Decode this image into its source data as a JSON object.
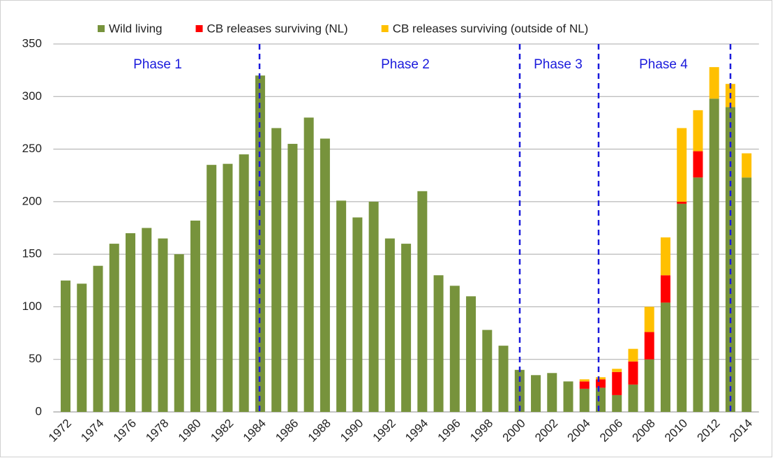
{
  "chart_data": {
    "type": "stacked_bar",
    "categories": [
      "1972",
      null,
      "1974",
      null,
      "1976",
      null,
      "1978",
      null,
      "1980",
      null,
      "1982",
      null,
      "1984",
      null,
      "1986",
      null,
      "1988",
      null,
      "1990",
      null,
      "1992",
      null,
      "1994",
      null,
      "1996",
      null,
      "1998",
      null,
      "2000",
      null,
      "2002",
      null,
      "2004",
      null,
      "2006",
      null,
      "2008",
      null,
      "2010",
      null,
      "2012",
      null,
      "2014"
    ],
    "series": [
      {
        "name": "Wild living",
        "color": "#77933c",
        "values": [
          125,
          122,
          139,
          160,
          170,
          175,
          165,
          150,
          182,
          235,
          236,
          245,
          320,
          270,
          255,
          280,
          260,
          201,
          185,
          200,
          165,
          160,
          210,
          130,
          120,
          110,
          78,
          63,
          40,
          35,
          37,
          29,
          22,
          23,
          16,
          26,
          50,
          104,
          198,
          223,
          298,
          290,
          223
        ]
      },
      {
        "name": "CB releases surviving (NL)",
        "color": "#ff0000",
        "values": [
          0,
          0,
          0,
          0,
          0,
          0,
          0,
          0,
          0,
          0,
          0,
          0,
          0,
          0,
          0,
          0,
          0,
          0,
          0,
          0,
          0,
          0,
          0,
          0,
          0,
          0,
          0,
          0,
          0,
          0,
          0,
          0,
          7,
          8,
          22,
          22,
          26,
          26,
          2,
          25,
          0,
          0,
          0
        ]
      },
      {
        "name": "CB releases surviving (outside of NL)",
        "color": "#ffc000",
        "values": [
          0,
          0,
          0,
          0,
          0,
          0,
          0,
          0,
          0,
          0,
          0,
          0,
          0,
          0,
          0,
          0,
          0,
          0,
          0,
          0,
          0,
          0,
          0,
          0,
          0,
          0,
          0,
          0,
          0,
          0,
          0,
          0,
          2,
          2,
          3,
          12,
          24,
          36,
          70,
          39,
          30,
          22,
          23
        ]
      }
    ],
    "annotations": [
      "Phase 1",
      "Phase 2",
      "Phase 3",
      "Phase 4"
    ],
    "ylim": [
      0,
      350
    ],
    "yticks": [
      0,
      50,
      100,
      150,
      200,
      250,
      300,
      350
    ],
    "grid": true,
    "legend": "top"
  }
}
